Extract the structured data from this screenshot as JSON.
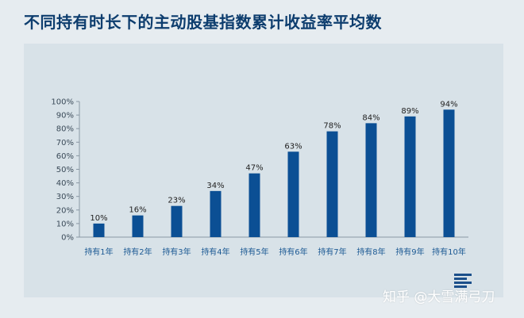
{
  "title": "不同持有时长下的主动股基指数累计收益率平均数",
  "watermark": "知乎 @大雪满弓刀",
  "colors": {
    "bar": "#0b4f94",
    "panel": "#d8e2e8",
    "background": "#e6ecf0",
    "category_label": "#1d5a94"
  },
  "chart_data": {
    "type": "bar",
    "title": "不同持有时长下的主动股基指数累计收益率平均数",
    "categories": [
      "持有1年",
      "持有2年",
      "持有3年",
      "持有4年",
      "持有5年",
      "持有6年",
      "持有7年",
      "持有8年",
      "持有9年",
      "持有10年"
    ],
    "values": [
      10,
      16,
      23,
      34,
      47,
      63,
      78,
      84,
      89,
      94
    ],
    "data_labels": [
      "10%",
      "16%",
      "23%",
      "34%",
      "47%",
      "63%",
      "78%",
      "84%",
      "89%",
      "94%"
    ],
    "yticks": [
      "0%",
      "10%",
      "20%",
      "30%",
      "40%",
      "50%",
      "60%",
      "70%",
      "80%",
      "90%",
      "100%"
    ],
    "ylim": [
      0,
      100
    ],
    "grid": false,
    "legend": "none"
  }
}
